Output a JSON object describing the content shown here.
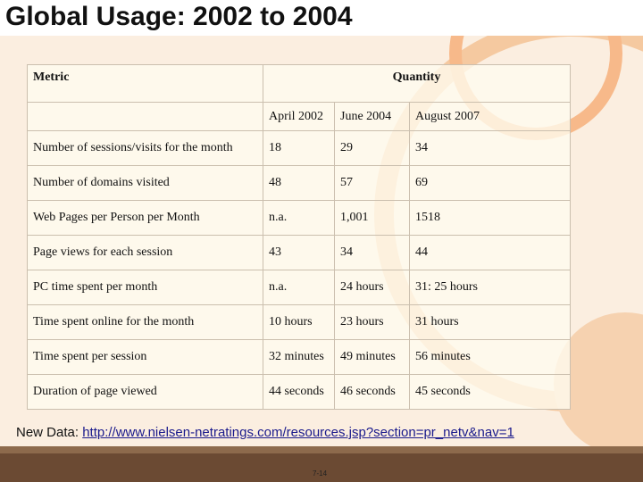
{
  "title": "Global Usage: 2002 to 2004",
  "table": {
    "header": [
      "Metric",
      "Quantity"
    ],
    "subheader": [
      "April 2002",
      "June 2004",
      "August 2007"
    ],
    "rows": [
      [
        "Number of sessions/visits for the month",
        "18",
        "29",
        "34"
      ],
      [
        "Number of domains visited",
        "48",
        "57",
        "69"
      ],
      [
        "Web Pages per Person per Month",
        "n.a.",
        "1,001",
        "1518"
      ],
      [
        "Page views for each session",
        "43",
        "34",
        "44"
      ],
      [
        "PC time spent per month",
        "n.a.",
        "24 hours",
        "31: 25 hours"
      ],
      [
        "Time spent online for the month",
        "10 hours",
        "23 hours",
        "31  hours"
      ],
      [
        "Time spent per session",
        "32 minutes",
        "49 minutes",
        "56 minutes"
      ],
      [
        "Duration of page viewed",
        "44 seconds",
        "46 seconds",
        "45 seconds"
      ]
    ]
  },
  "footer": {
    "label": "New Data:",
    "link": "http://www.nielsen-netratings.com/resources.jsp?section=pr_netv&nav=1"
  },
  "page_number": "7-14"
}
